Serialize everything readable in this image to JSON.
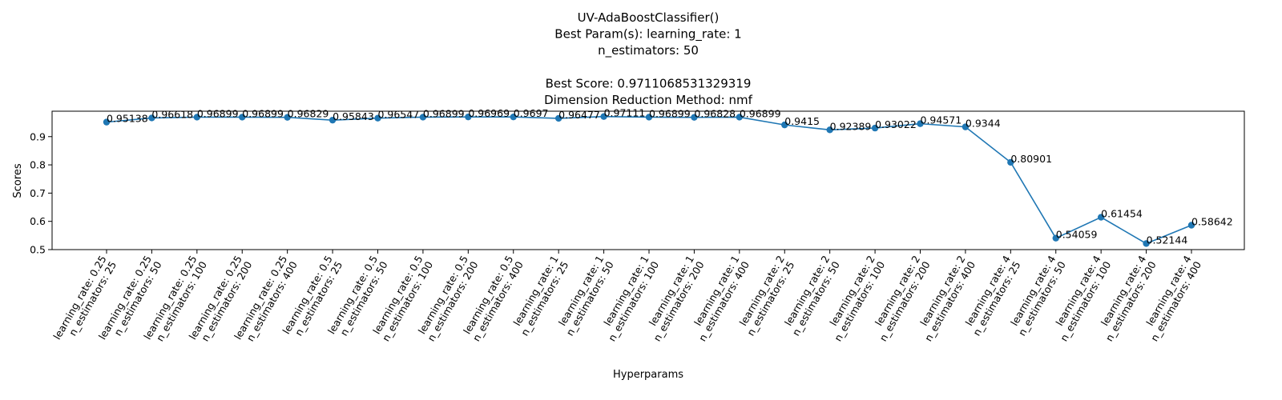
{
  "chart_data": {
    "type": "line",
    "title_lines": [
      "UV-AdaBoostClassifier()",
      "Best Param(s): learning_rate: 1",
      "n_estimators: 50",
      "",
      "Best Score: 0.9711068531329319",
      "Dimension Reduction Method: nmf"
    ],
    "xlabel": "Hyperparams",
    "ylabel": "Scores",
    "ylim": [
      0.5,
      0.99
    ],
    "yticks": [
      "0.5",
      "0.6",
      "0.7",
      "0.8",
      "0.9"
    ],
    "line_color": "#1f77b4",
    "grid": false,
    "categories": [
      [
        "learning_rate: 0.25",
        "n_estimators: 25"
      ],
      [
        "learning_rate: 0.25",
        "n_estimators: 50"
      ],
      [
        "learning_rate: 0.25",
        "n_estimators: 100"
      ],
      [
        "learning_rate: 0.25",
        "n_estimators: 200"
      ],
      [
        "learning_rate: 0.25",
        "n_estimators: 400"
      ],
      [
        "learning_rate: 0.5",
        "n_estimators: 25"
      ],
      [
        "learning_rate: 0.5",
        "n_estimators: 50"
      ],
      [
        "learning_rate: 0.5",
        "n_estimators: 100"
      ],
      [
        "learning_rate: 0.5",
        "n_estimators: 200"
      ],
      [
        "learning_rate: 0.5",
        "n_estimators: 400"
      ],
      [
        "learning_rate: 1",
        "n_estimators: 25"
      ],
      [
        "learning_rate: 1",
        "n_estimators: 50"
      ],
      [
        "learning_rate: 1",
        "n_estimators: 100"
      ],
      [
        "learning_rate: 1",
        "n_estimators: 200"
      ],
      [
        "learning_rate: 1",
        "n_estimators: 400"
      ],
      [
        "learning_rate: 2",
        "n_estimators: 25"
      ],
      [
        "learning_rate: 2",
        "n_estimators: 50"
      ],
      [
        "learning_rate: 2",
        "n_estimators: 100"
      ],
      [
        "learning_rate: 2",
        "n_estimators: 200"
      ],
      [
        "learning_rate: 2",
        "n_estimators: 400"
      ],
      [
        "learning_rate: 4",
        "n_estimators: 25"
      ],
      [
        "learning_rate: 4",
        "n_estimators: 50"
      ],
      [
        "learning_rate: 4",
        "n_estimators: 100"
      ],
      [
        "learning_rate: 4",
        "n_estimators: 200"
      ],
      [
        "learning_rate: 4",
        "n_estimators: 400"
      ]
    ],
    "values": [
      0.95138,
      0.96618,
      0.96899,
      0.96899,
      0.96829,
      0.95843,
      0.96547,
      0.96899,
      0.96969,
      0.9697,
      0.96477,
      0.97111,
      0.96899,
      0.96828,
      0.96899,
      0.9415,
      0.92389,
      0.93022,
      0.94571,
      0.9344,
      0.80901,
      0.54059,
      0.61454,
      0.52144,
      0.58642
    ],
    "value_labels": [
      "0.95138",
      "0.96618",
      "0.96899",
      "0.96899",
      "0.96829",
      "0.95843",
      "0.96547",
      "0.96899",
      "0.96969",
      "0.9697",
      "0.96477",
      "0.97111",
      "0.96899",
      "0.96828",
      "0.96899",
      "0.9415",
      "0.92389",
      "0.93022",
      "0.94571",
      "0.9344",
      "0.80901",
      "0.54059",
      "0.61454",
      "0.52144",
      "0.58642"
    ]
  }
}
